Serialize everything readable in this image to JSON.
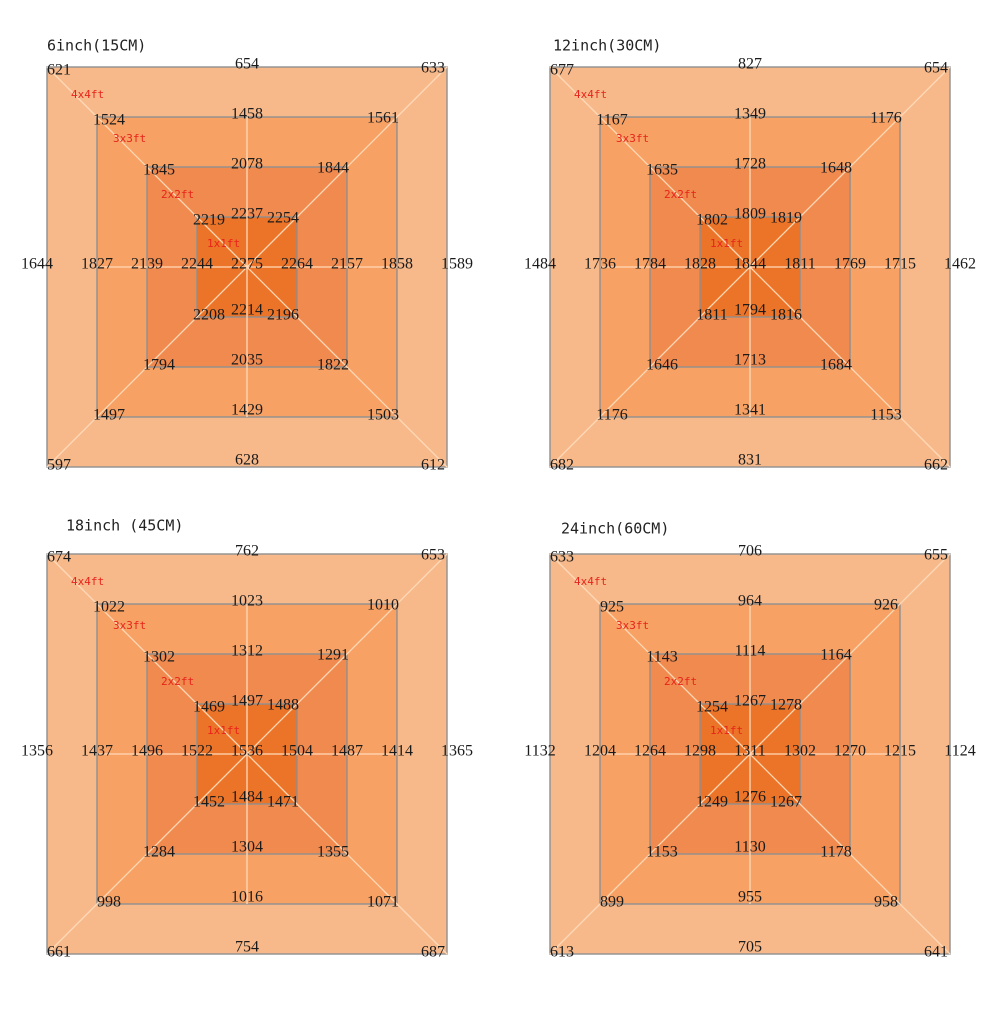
{
  "colors": {
    "zone_4x4": "#f7b98a",
    "zone_3x3": "#f7a264",
    "zone_2x2": "#f08a4e",
    "zone_1x1": "#ec7428",
    "border": "#8f8f8f",
    "diag": "#ffd9b8",
    "zone_label": "#e8231a"
  },
  "panels": [
    {
      "title": "6inch(15CM)",
      "zone_labels": [
        "4x4ft",
        "3x3ft",
        "2x2ft",
        "1x1ft"
      ],
      "rings": [
        [
          "621",
          "654",
          "633",
          "1644",
          "1589",
          "597",
          "628",
          "612"
        ],
        [
          "1524",
          "1458",
          "1561",
          "1827",
          "1858",
          "1497",
          "1429",
          "1503"
        ],
        [
          "1845",
          "2078",
          "1844",
          "2139",
          "2157",
          "1794",
          "2035",
          "1822"
        ],
        [
          "2219",
          "2237",
          "2254",
          "2244",
          "2264",
          "2208",
          "2214",
          "2196"
        ]
      ],
      "center": "2275"
    },
    {
      "title": "12inch(30CM)",
      "zone_labels": [
        "4x4ft",
        "3x3ft",
        "2x2ft",
        "1x1ft"
      ],
      "rings": [
        [
          "677",
          "827",
          "654",
          "1484",
          "1462",
          "682",
          "831",
          "662"
        ],
        [
          "1167",
          "1349",
          "1176",
          "1736",
          "1715",
          "1176",
          "1341",
          "1153"
        ],
        [
          "1635",
          "1728",
          "1648",
          "1784",
          "1769",
          "1646",
          "1713",
          "1684"
        ],
        [
          "1802",
          "1809",
          "1819",
          "1828",
          "1811",
          "1811",
          "1794",
          "1816"
        ]
      ],
      "center": "1844"
    },
    {
      "title": "18inch (45CM)",
      "zone_labels": [
        "4x4ft",
        "3x3ft",
        "2x2ft",
        "1x1ft"
      ],
      "rings": [
        [
          "674",
          "762",
          "653",
          "1356",
          "1365",
          "661",
          "754",
          "687"
        ],
        [
          "1022",
          "1023",
          "1010",
          "1437",
          "1414",
          "998",
          "1016",
          "1071"
        ],
        [
          "1302",
          "1312",
          "1291",
          "1496",
          "1487",
          "1284",
          "1304",
          "1355"
        ],
        [
          "1469",
          "1497",
          "1488",
          "1522",
          "1504",
          "1452",
          "1484",
          "1471"
        ]
      ],
      "center": "1536"
    },
    {
      "title": "24inch(60CM)",
      "zone_labels": [
        "4x4ft",
        "3x3ft",
        "2x2ft",
        "1x1ft"
      ],
      "rings": [
        [
          "633",
          "706",
          "655",
          "1132",
          "1124",
          "613",
          "705",
          "641"
        ],
        [
          "925",
          "964",
          "926",
          "1204",
          "1215",
          "899",
          "955",
          "958"
        ],
        [
          "1143",
          "1114",
          "1164",
          "1264",
          "1270",
          "1153",
          "1130",
          "1178"
        ],
        [
          "1254",
          "1267",
          "1278",
          "1298",
          "1302",
          "1249",
          "1276",
          "1267"
        ]
      ],
      "center": "1311"
    }
  ]
}
